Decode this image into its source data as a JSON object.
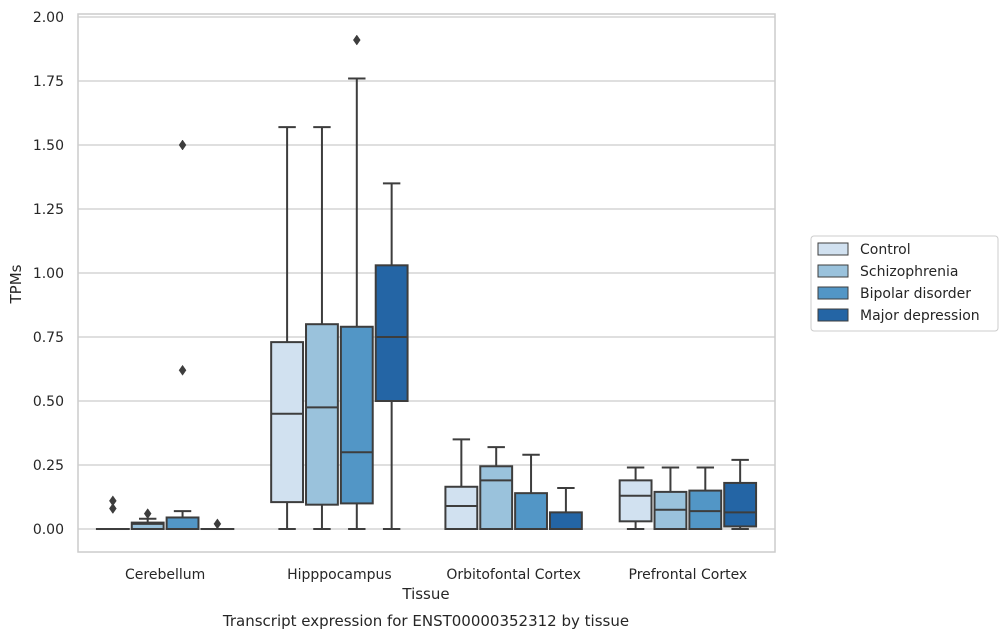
{
  "chart_data": {
    "type": "box",
    "title": "",
    "xlabel": "Tissue",
    "ylabel": "TPMs",
    "caption": "Transcript expression for ENST00000352312 by tissue",
    "ylim": [
      -0.09,
      2.01
    ],
    "yticks": [
      "0.00",
      "0.25",
      "0.50",
      "0.75",
      "1.00",
      "1.25",
      "1.50",
      "1.75",
      "2.00"
    ],
    "ytick_values": [
      0,
      0.25,
      0.5,
      0.75,
      1.0,
      1.25,
      1.5,
      1.75,
      2.0
    ],
    "grid": true,
    "legend_position": "right",
    "categories": [
      "Cerebellum",
      "Hipppocampus",
      "Orbitofontal Cortex",
      "Prefrontal Cortex"
    ],
    "series": [
      {
        "name": "Control",
        "color": "#d1e1f0",
        "boxes": [
          {
            "whislo": 0,
            "q1": 0,
            "med": 0,
            "q3": 0,
            "whishi": 0,
            "fliers": [
              0.08,
              0.11
            ]
          },
          {
            "whislo": 0,
            "q1": 0.105,
            "med": 0.45,
            "q3": 0.73,
            "whishi": 1.57,
            "fliers": []
          },
          {
            "whislo": 0,
            "q1": 0,
            "med": 0.09,
            "q3": 0.165,
            "whishi": 0.35,
            "fliers": []
          },
          {
            "whislo": 0,
            "q1": 0.03,
            "med": 0.13,
            "q3": 0.19,
            "whishi": 0.24,
            "fliers": []
          }
        ]
      },
      {
        "name": "Schizophrenia",
        "color": "#9ac2dc",
        "boxes": [
          {
            "whislo": 0,
            "q1": 0,
            "med": 0.02,
            "q3": 0.025,
            "whishi": 0.04,
            "fliers": [
              0.06
            ]
          },
          {
            "whislo": 0,
            "q1": 0.095,
            "med": 0.475,
            "q3": 0.8,
            "whishi": 1.57,
            "fliers": []
          },
          {
            "whislo": 0,
            "q1": 0,
            "med": 0.19,
            "q3": 0.245,
            "whishi": 0.32,
            "fliers": []
          },
          {
            "whislo": 0,
            "q1": 0,
            "med": 0.075,
            "q3": 0.145,
            "whishi": 0.24,
            "fliers": []
          }
        ]
      },
      {
        "name": "Bipolar disorder",
        "color": "#5296c6",
        "boxes": [
          {
            "whislo": 0,
            "q1": 0,
            "med": 0,
            "q3": 0.045,
            "whishi": 0.07,
            "fliers": [
              0.62,
              1.5
            ]
          },
          {
            "whislo": 0,
            "q1": 0.1,
            "med": 0.3,
            "q3": 0.79,
            "whishi": 1.76,
            "fliers": [
              1.91
            ]
          },
          {
            "whislo": 0,
            "q1": 0,
            "med": 0,
            "q3": 0.14,
            "whishi": 0.29,
            "fliers": []
          },
          {
            "whislo": 0,
            "q1": 0,
            "med": 0.07,
            "q3": 0.15,
            "whishi": 0.24,
            "fliers": []
          }
        ]
      },
      {
        "name": "Major depression",
        "color": "#2465a5",
        "boxes": [
          {
            "whislo": 0,
            "q1": 0,
            "med": 0,
            "q3": 0,
            "whishi": 0,
            "fliers": [
              0.02
            ]
          },
          {
            "whislo": 0,
            "q1": 0.5,
            "med": 0.75,
            "q3": 1.03,
            "whishi": 1.35,
            "fliers": []
          },
          {
            "whislo": 0,
            "q1": 0,
            "med": 0,
            "q3": 0.065,
            "whishi": 0.16,
            "fliers": []
          },
          {
            "whislo": 0,
            "q1": 0.01,
            "med": 0.065,
            "q3": 0.18,
            "whishi": 0.27,
            "fliers": []
          }
        ]
      }
    ]
  }
}
